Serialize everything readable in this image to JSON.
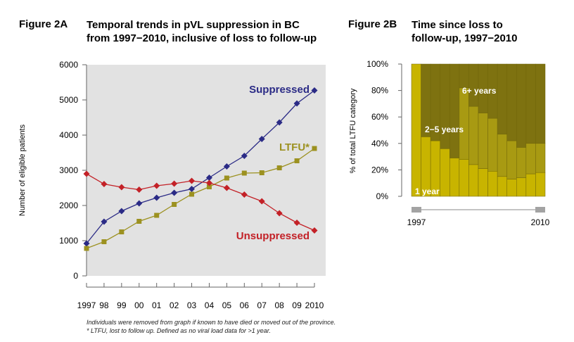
{
  "figA": {
    "label": "Figure 2A",
    "title_line1": "Temporal trends in pVL suppression in BC",
    "title_line2": "from 1997−2010, inclusive of loss to follow-up"
  },
  "figB": {
    "label": "Figure 2B",
    "title_line1": "Time since loss to",
    "title_line2": "follow-up, 1997−2010"
  },
  "footnote_line1": "Individuals were removed from graph if known to have died or moved out of the province.",
  "footnote_line2": "* LTFU, lost to follow up. Defined as no viral load data for >1 year.",
  "chart_data": [
    {
      "type": "line",
      "title": "",
      "xlabel": "",
      "ylabel": "Number of eligible patients",
      "x": [
        "1997",
        "98",
        "99",
        "00",
        "01",
        "02",
        "03",
        "04",
        "05",
        "06",
        "07",
        "08",
        "09",
        "2010"
      ],
      "ylim": [
        0,
        6000
      ],
      "yticks": [
        0,
        1000,
        2000,
        3000,
        4000,
        5000,
        6000
      ],
      "grid": false,
      "background": "#e2e2e2",
      "series": [
        {
          "name": "Suppressed",
          "color": "#2b2b86",
          "marker": "diamond",
          "values": [
            920,
            1540,
            1840,
            2060,
            2220,
            2360,
            2470,
            2790,
            3110,
            3410,
            3890,
            4360,
            4900,
            5270
          ]
        },
        {
          "name": "LTFU*",
          "color": "#9c9120",
          "marker": "square",
          "values": [
            780,
            970,
            1250,
            1550,
            1720,
            2030,
            2320,
            2530,
            2780,
            2920,
            2930,
            3070,
            3270,
            3620
          ]
        },
        {
          "name": "Unsuppressed",
          "color": "#c32127",
          "marker": "diamond",
          "values": [
            2900,
            2610,
            2520,
            2450,
            2560,
            2620,
            2700,
            2640,
            2500,
            2310,
            2120,
            1780,
            1510,
            1290
          ]
        }
      ]
    },
    {
      "type": "bar",
      "stacked": true,
      "title": "",
      "xlabel": "",
      "ylabel": "% of total LTFU category",
      "x_start_label": "1997",
      "x_end_label": "2010",
      "ylim": [
        0,
        100
      ],
      "yticks": [
        "0%",
        "20%",
        "40%",
        "60%",
        "80%",
        "100%"
      ],
      "categories": [
        "1997",
        "1998",
        "1999",
        "2000",
        "2001",
        "2002",
        "2003",
        "2004",
        "2005",
        "2006",
        "2007",
        "2008",
        "2009",
        "2010"
      ],
      "series": [
        {
          "name": "1 year",
          "color": "#c8b400",
          "values": [
            100,
            45,
            42,
            36,
            29,
            28,
            24,
            21,
            19,
            15,
            13,
            14,
            17,
            18
          ]
        },
        {
          "name": "2−5 years",
          "color": "#a89a12",
          "values": [
            0,
            0,
            0,
            0,
            0,
            54,
            44,
            42,
            40,
            32,
            29,
            23,
            23,
            22
          ]
        },
        {
          "name": "6+ years",
          "color": "#7e7210",
          "values": [
            0,
            55,
            58,
            64,
            71,
            18,
            32,
            37,
            41,
            53,
            58,
            63,
            60,
            60
          ]
        }
      ]
    }
  ]
}
